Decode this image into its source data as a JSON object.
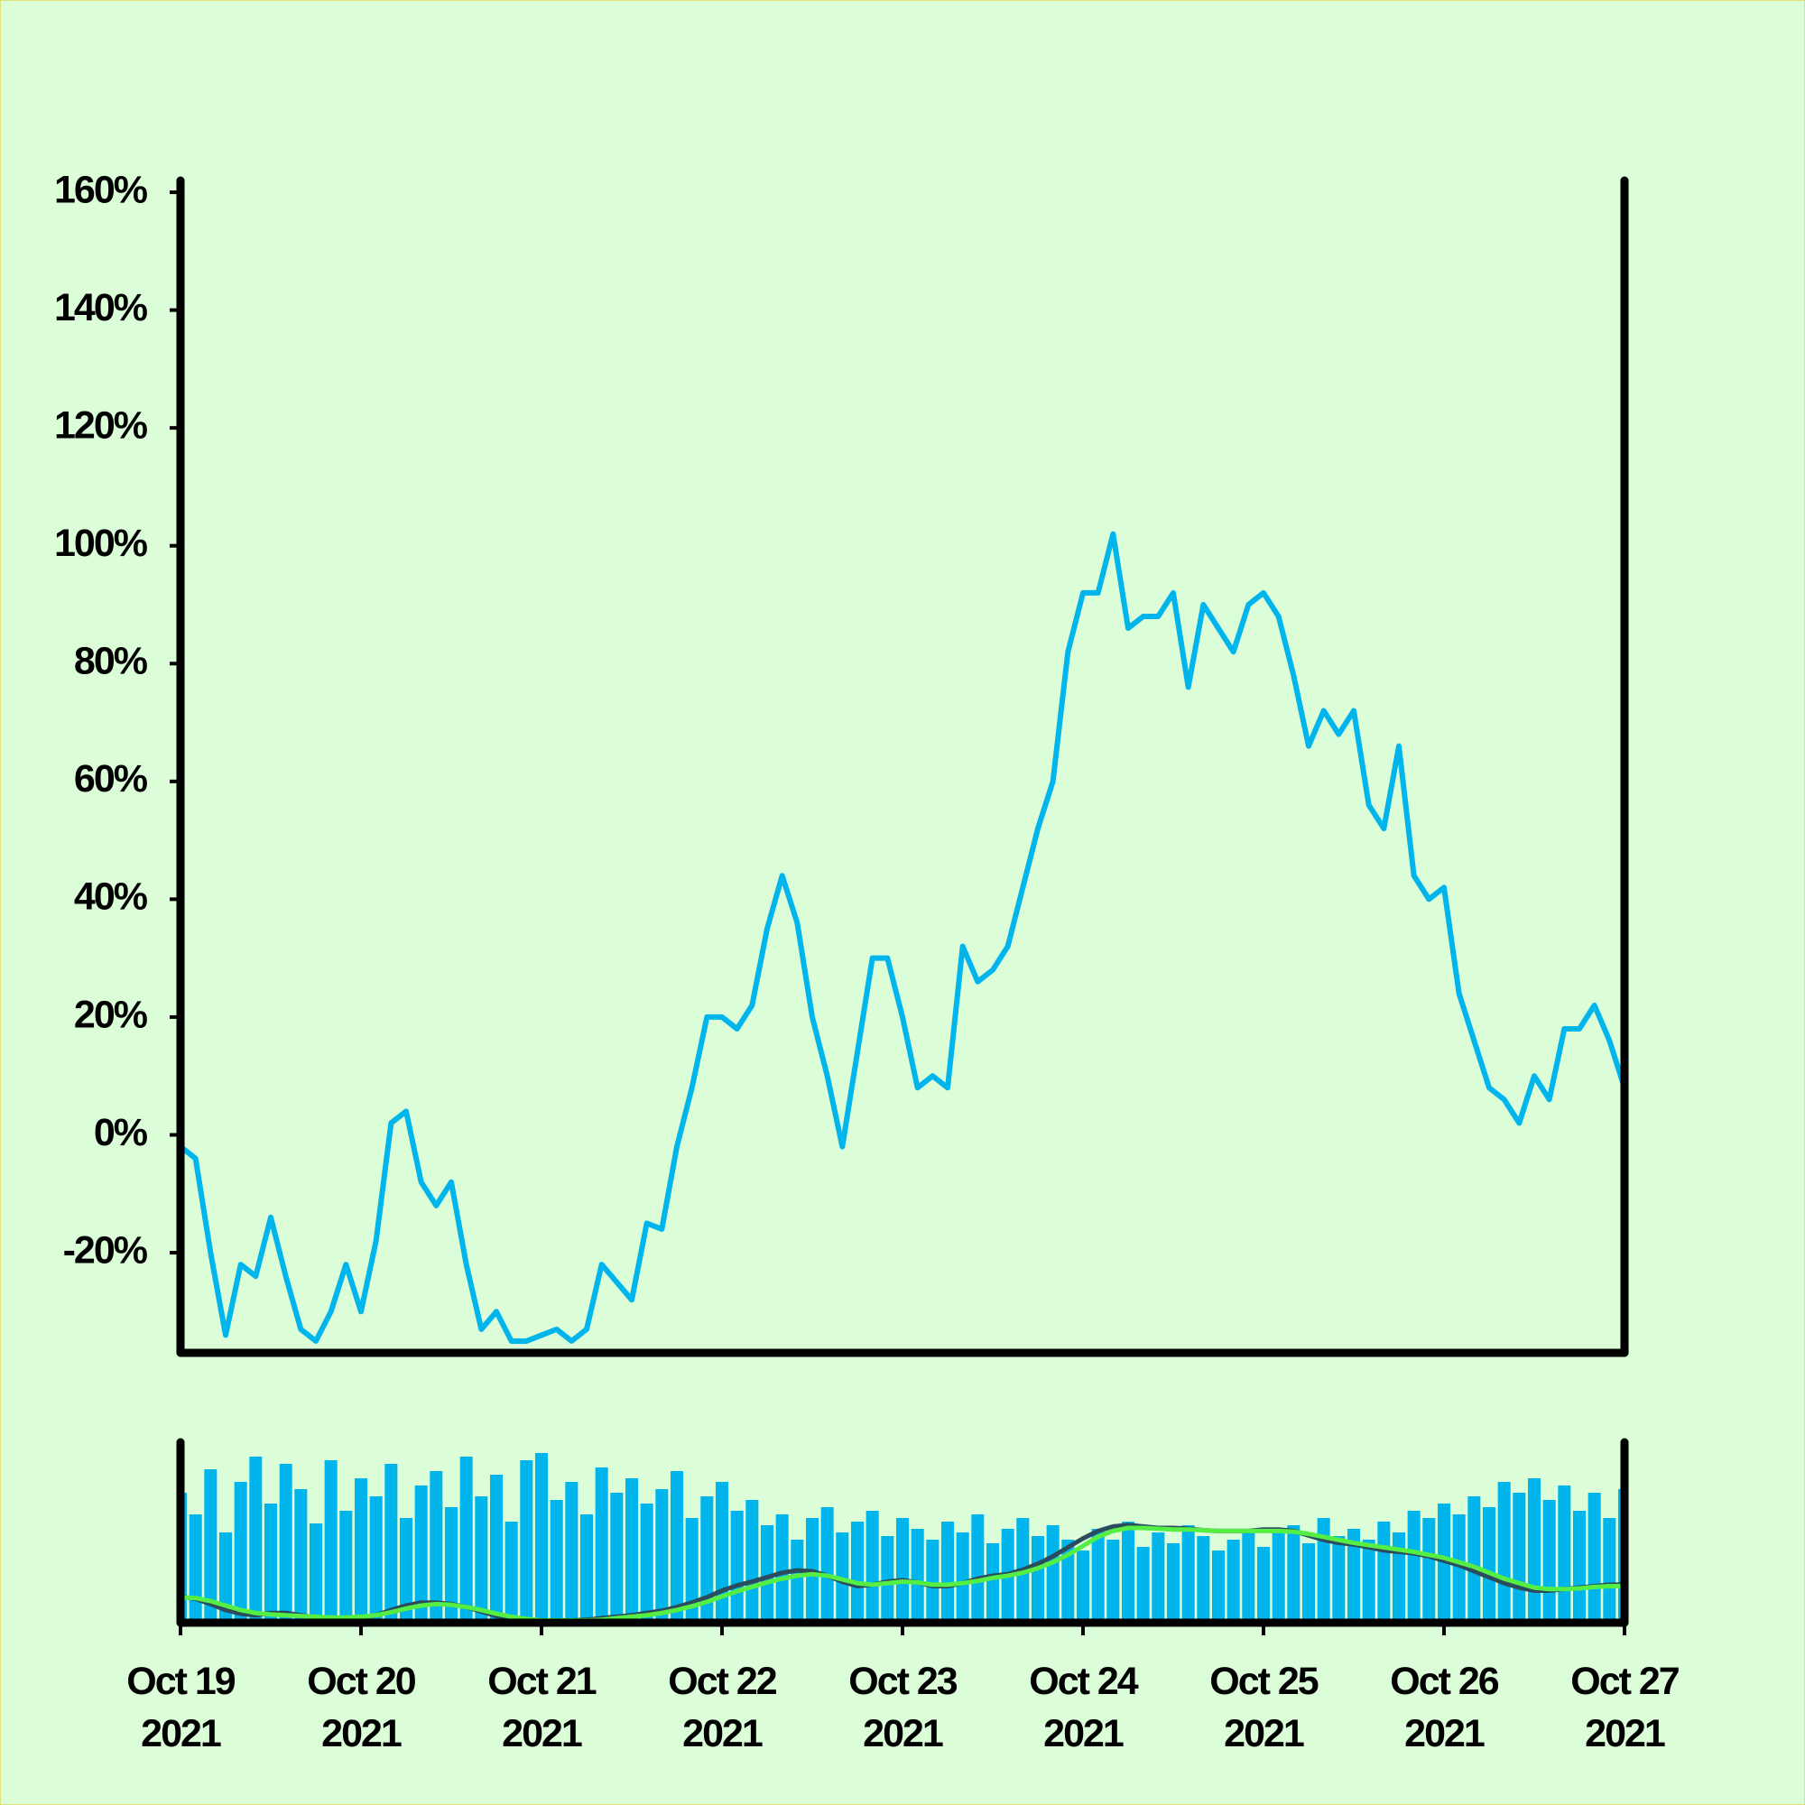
{
  "chart_data": [
    {
      "type": "line",
      "x": [
        "2021-10-19 00:00",
        "2021-10-19 02:00",
        "2021-10-19 04:00",
        "2021-10-19 06:00",
        "2021-10-19 08:00",
        "2021-10-19 10:00",
        "2021-10-19 12:00",
        "2021-10-19 14:00",
        "2021-10-19 16:00",
        "2021-10-19 18:00",
        "2021-10-19 20:00",
        "2021-10-19 22:00",
        "2021-10-20 00:00",
        "2021-10-20 02:00",
        "2021-10-20 04:00",
        "2021-10-20 06:00",
        "2021-10-20 08:00",
        "2021-10-20 10:00",
        "2021-10-20 12:00",
        "2021-10-20 14:00",
        "2021-10-20 16:00",
        "2021-10-20 18:00",
        "2021-10-20 20:00",
        "2021-10-20 22:00",
        "2021-10-21 00:00",
        "2021-10-21 02:00",
        "2021-10-21 04:00",
        "2021-10-21 06:00",
        "2021-10-21 08:00",
        "2021-10-21 10:00",
        "2021-10-21 12:00",
        "2021-10-21 14:00",
        "2021-10-21 16:00",
        "2021-10-21 18:00",
        "2021-10-21 20:00",
        "2021-10-21 22:00",
        "2021-10-22 00:00",
        "2021-10-22 02:00",
        "2021-10-22 04:00",
        "2021-10-22 06:00",
        "2021-10-22 08:00",
        "2021-10-22 10:00",
        "2021-10-22 12:00",
        "2021-10-22 14:00",
        "2021-10-22 16:00",
        "2021-10-22 18:00",
        "2021-10-22 20:00",
        "2021-10-22 22:00",
        "2021-10-23 00:00",
        "2021-10-23 02:00",
        "2021-10-23 04:00",
        "2021-10-23 06:00",
        "2021-10-23 08:00",
        "2021-10-23 10:00",
        "2021-10-23 12:00",
        "2021-10-23 14:00",
        "2021-10-23 16:00",
        "2021-10-23 18:00",
        "2021-10-23 20:00",
        "2021-10-23 22:00",
        "2021-10-24 00:00",
        "2021-10-24 02:00",
        "2021-10-24 04:00",
        "2021-10-24 06:00",
        "2021-10-24 08:00",
        "2021-10-24 10:00",
        "2021-10-24 12:00",
        "2021-10-24 14:00",
        "2021-10-24 16:00",
        "2021-10-24 18:00",
        "2021-10-24 20:00",
        "2021-10-24 22:00",
        "2021-10-25 00:00",
        "2021-10-25 02:00",
        "2021-10-25 04:00",
        "2021-10-25 06:00",
        "2021-10-25 08:00",
        "2021-10-25 10:00",
        "2021-10-25 12:00",
        "2021-10-25 14:00",
        "2021-10-25 16:00",
        "2021-10-25 18:00",
        "2021-10-25 20:00",
        "2021-10-25 22:00",
        "2021-10-26 00:00",
        "2021-10-26 02:00",
        "2021-10-26 04:00",
        "2021-10-26 06:00",
        "2021-10-26 08:00",
        "2021-10-26 10:00",
        "2021-10-26 12:00",
        "2021-10-26 14:00",
        "2021-10-26 16:00",
        "2021-10-26 18:00",
        "2021-10-26 20:00",
        "2021-10-26 22:00",
        "2021-10-27 00:00"
      ],
      "series": [
        {
          "color": "#00b4ec",
          "values": [
            -2,
            -4,
            -20,
            -34,
            -22,
            -24,
            -14,
            -24,
            -33,
            -35,
            -30,
            -22,
            -30,
            -18,
            2,
            4,
            -8,
            -12,
            -8,
            -22,
            -33,
            -30,
            -35,
            -35,
            -34,
            -33,
            -35,
            -33,
            -22,
            -25,
            -28,
            -15,
            -16,
            -2,
            8,
            20,
            20,
            18,
            22,
            35,
            44,
            36,
            20,
            10,
            -2,
            14,
            30,
            30,
            20,
            8,
            10,
            8,
            32,
            26,
            28,
            32,
            42,
            52,
            60,
            82,
            92,
            92,
            102,
            86,
            88,
            88,
            92,
            76,
            90,
            86,
            82,
            90,
            92,
            88,
            78,
            66,
            72,
            68,
            72,
            56,
            52,
            66,
            44,
            40,
            42,
            24,
            16,
            8,
            6,
            2,
            10,
            6,
            18,
            18,
            22,
            16,
            8
          ]
        }
      ],
      "xlim": [
        "2021-10-19 00:00",
        "2021-10-27 00:00"
      ],
      "ylim": [
        -37,
        162
      ],
      "yticks": [
        {
          "value": -20,
          "label": "-20%"
        },
        {
          "value": 0,
          "label": "0%"
        },
        {
          "value": 20,
          "label": "20%"
        },
        {
          "value": 40,
          "label": "40%"
        },
        {
          "value": 60,
          "label": "60%"
        },
        {
          "value": 80,
          "label": "80%"
        },
        {
          "value": 100,
          "label": "100%"
        },
        {
          "value": 120,
          "label": "120%"
        },
        {
          "value": 140,
          "label": "140%"
        },
        {
          "value": 160,
          "label": "160%"
        }
      ]
    },
    {
      "type": "bar",
      "x": [
        "2021-10-19 00:00",
        "2021-10-19 02:00",
        "2021-10-19 04:00",
        "2021-10-19 06:00",
        "2021-10-19 08:00",
        "2021-10-19 10:00",
        "2021-10-19 12:00",
        "2021-10-19 14:00",
        "2021-10-19 16:00",
        "2021-10-19 18:00",
        "2021-10-19 20:00",
        "2021-10-19 22:00",
        "2021-10-20 00:00",
        "2021-10-20 02:00",
        "2021-10-20 04:00",
        "2021-10-20 06:00",
        "2021-10-20 08:00",
        "2021-10-20 10:00",
        "2021-10-20 12:00",
        "2021-10-20 14:00",
        "2021-10-20 16:00",
        "2021-10-20 18:00",
        "2021-10-20 20:00",
        "2021-10-20 22:00",
        "2021-10-21 00:00",
        "2021-10-21 02:00",
        "2021-10-21 04:00",
        "2021-10-21 06:00",
        "2021-10-21 08:00",
        "2021-10-21 10:00",
        "2021-10-21 12:00",
        "2021-10-21 14:00",
        "2021-10-21 16:00",
        "2021-10-21 18:00",
        "2021-10-21 20:00",
        "2021-10-21 22:00",
        "2021-10-22 00:00",
        "2021-10-22 02:00",
        "2021-10-22 04:00",
        "2021-10-22 06:00",
        "2021-10-22 08:00",
        "2021-10-22 10:00",
        "2021-10-22 12:00",
        "2021-10-22 14:00",
        "2021-10-22 16:00",
        "2021-10-22 18:00",
        "2021-10-22 20:00",
        "2021-10-22 22:00",
        "2021-10-23 00:00",
        "2021-10-23 02:00",
        "2021-10-23 04:00",
        "2021-10-23 06:00",
        "2021-10-23 08:00",
        "2021-10-23 10:00",
        "2021-10-23 12:00",
        "2021-10-23 14:00",
        "2021-10-23 16:00",
        "2021-10-23 18:00",
        "2021-10-23 20:00",
        "2021-10-23 22:00",
        "2021-10-24 00:00",
        "2021-10-24 02:00",
        "2021-10-24 04:00",
        "2021-10-24 06:00",
        "2021-10-24 08:00",
        "2021-10-24 10:00",
        "2021-10-24 12:00",
        "2021-10-24 14:00",
        "2021-10-24 16:00",
        "2021-10-24 18:00",
        "2021-10-24 20:00",
        "2021-10-24 22:00",
        "2021-10-25 00:00",
        "2021-10-25 02:00",
        "2021-10-25 04:00",
        "2021-10-25 06:00",
        "2021-10-25 08:00",
        "2021-10-25 10:00",
        "2021-10-25 12:00",
        "2021-10-25 14:00",
        "2021-10-25 16:00",
        "2021-10-25 18:00",
        "2021-10-25 20:00",
        "2021-10-25 22:00",
        "2021-10-26 00:00",
        "2021-10-26 02:00",
        "2021-10-26 04:00",
        "2021-10-26 06:00",
        "2021-10-26 08:00",
        "2021-10-26 10:00",
        "2021-10-26 12:00",
        "2021-10-26 14:00",
        "2021-10-26 16:00",
        "2021-10-26 18:00",
        "2021-10-26 20:00",
        "2021-10-26 22:00",
        "2021-10-27 00:00"
      ],
      "series": [
        {
          "type": "bar",
          "color": "#00b4ec",
          "values": [
            72,
            60,
            85,
            50,
            78,
            92,
            66,
            88,
            74,
            55,
            90,
            62,
            80,
            70,
            88,
            58,
            76,
            84,
            64,
            92,
            70,
            82,
            56,
            90,
            94,
            68,
            78,
            60,
            86,
            72,
            80,
            66,
            74,
            84,
            58,
            70,
            78,
            62,
            68,
            54,
            60,
            46,
            58,
            64,
            50,
            56,
            62,
            48,
            58,
            52,
            46,
            56,
            50,
            60,
            44,
            52,
            58,
            48,
            54,
            46,
            40,
            52,
            46,
            56,
            42,
            50,
            44,
            54,
            48,
            40,
            46,
            52,
            42,
            50,
            54,
            44,
            58,
            48,
            52,
            46,
            56,
            50,
            62,
            58,
            66,
            60,
            70,
            64,
            78,
            72,
            80,
            68,
            76,
            62,
            72,
            58,
            74
          ]
        },
        {
          "type": "line",
          "axis": "y2",
          "color": "#2b4c5c",
          "values": [
            -2,
            -5,
            -12,
            -20,
            -25,
            -27,
            -24,
            -24,
            -27,
            -30,
            -32,
            -32,
            -30,
            -27,
            -20,
            -14,
            -10,
            -10,
            -12,
            -16,
            -22,
            -28,
            -32,
            -34,
            -34,
            -34,
            -34,
            -33,
            -31,
            -29,
            -27,
            -24,
            -21,
            -16,
            -10,
            -3,
            6,
            13,
            18,
            24,
            30,
            33,
            32,
            26,
            18,
            12,
            14,
            18,
            20,
            17,
            12,
            12,
            16,
            22,
            26,
            28,
            34,
            42,
            52,
            64,
            76,
            86,
            92,
            94,
            92,
            90,
            90,
            89,
            87,
            86,
            86,
            86,
            88,
            88,
            86,
            80,
            74,
            70,
            68,
            64,
            60,
            58,
            56,
            52,
            46,
            40,
            32,
            24,
            16,
            10,
            6,
            6,
            8,
            10,
            12,
            14,
            14
          ]
        },
        {
          "type": "line",
          "axis": "y2",
          "color": "#55ee44",
          "values": [
            -3,
            -4,
            -8,
            -14,
            -20,
            -24,
            -26,
            -27,
            -28,
            -29,
            -30,
            -30,
            -29,
            -27,
            -23,
            -18,
            -14,
            -12,
            -13,
            -16,
            -20,
            -25,
            -29,
            -32,
            -34,
            -34,
            -34,
            -34,
            -33,
            -31,
            -29,
            -27,
            -24,
            -20,
            -15,
            -9,
            -2,
            5,
            11,
            17,
            22,
            26,
            28,
            26,
            21,
            16,
            14,
            16,
            18,
            17,
            14,
            14,
            16,
            19,
            23,
            26,
            30,
            36,
            44,
            54,
            66,
            78,
            86,
            90,
            90,
            89,
            88,
            88,
            87,
            86,
            86,
            86,
            86,
            86,
            85,
            82,
            78,
            74,
            70,
            67,
            64,
            61,
            58,
            54,
            50,
            44,
            38,
            30,
            22,
            16,
            10,
            8,
            8,
            9,
            11,
            12,
            12
          ]
        }
      ],
      "xlim": [
        "2021-10-19 00:00",
        "2021-10-27 00:00"
      ],
      "ylim": [
        0,
        100
      ],
      "y2lim": [
        -37,
        205
      ],
      "xticks": [
        {
          "value": "2021-10-19 00:00",
          "label": "Oct 19\n2021"
        },
        {
          "value": "2021-10-20 00:00",
          "label": "Oct 20\n2021"
        },
        {
          "value": "2021-10-21 00:00",
          "label": "Oct 21\n2021"
        },
        {
          "value": "2021-10-22 00:00",
          "label": "Oct 22\n2021"
        },
        {
          "value": "2021-10-23 00:00",
          "label": "Oct 23\n2021"
        },
        {
          "value": "2021-10-24 00:00",
          "label": "Oct 24\n2021"
        },
        {
          "value": "2021-10-25 00:00",
          "label": "Oct 25\n2021"
        },
        {
          "value": "2021-10-26 00:00",
          "label": "Oct 26\n2021"
        },
        {
          "value": "2021-10-27 00:00",
          "label": "Oct 27\n2021"
        }
      ]
    }
  ]
}
